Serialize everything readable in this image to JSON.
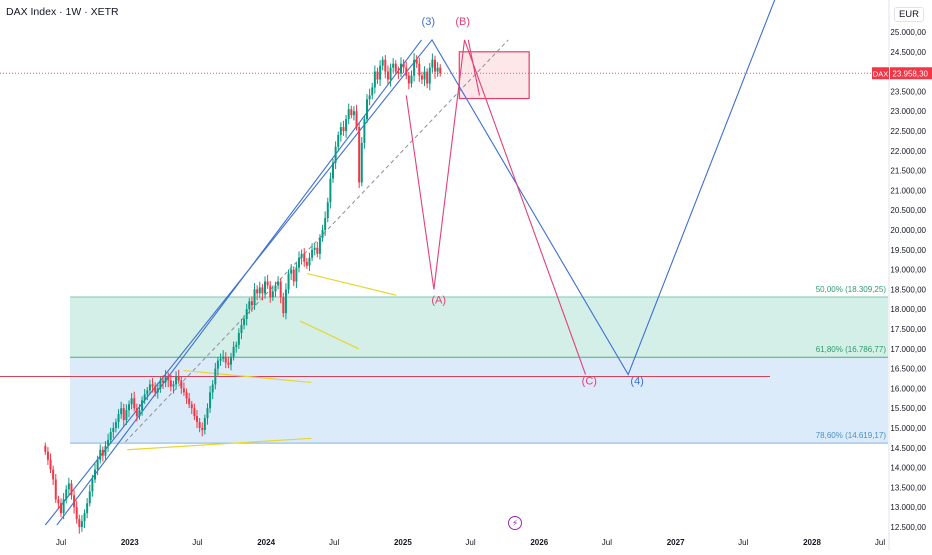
{
  "header": {
    "symbol_title": "DAX Index · 1W · XETR",
    "currency": "EUR"
  },
  "chart_data": {
    "type": "candlestick",
    "title": "DAX Index · 1W · XETR",
    "price_scale": {
      "unit": "EUR",
      "range": [
        12400,
        25500
      ],
      "ticks": [
        "25.000,00",
        "24.500,00",
        "24.000,00",
        "23.500,00",
        "23.000,00",
        "22.500,00",
        "22.000,00",
        "21.500,00",
        "21.000,00",
        "20.500,00",
        "20.000,00",
        "19.500,00",
        "19.000,00",
        "18.500,00",
        "18.000,00",
        "17.500,00",
        "17.000,00",
        "16.500,00",
        "16.000,00",
        "15.500,00",
        "15.000,00",
        "14.500,00",
        "14.000,00",
        "13.500,00",
        "13.000,00",
        "12.500,00"
      ],
      "tick_values": [
        25000,
        24500,
        24000,
        23500,
        23000,
        22500,
        22000,
        21500,
        21000,
        20500,
        20000,
        19500,
        19000,
        18500,
        18000,
        17500,
        17000,
        16500,
        16000,
        15500,
        15000,
        14500,
        14000,
        13500,
        13000,
        12500
      ]
    },
    "time_scale": {
      "range": [
        "2022-05-20",
        "2028-07-15"
      ],
      "ticks": [
        {
          "label": "Jul",
          "date": "2022-07-01"
        },
        {
          "label": "2023",
          "date": "2023-01-01"
        },
        {
          "label": "Jul",
          "date": "2023-07-01"
        },
        {
          "label": "2024",
          "date": "2024-01-01"
        },
        {
          "label": "Jul",
          "date": "2024-07-01"
        },
        {
          "label": "2025",
          "date": "2025-01-01"
        },
        {
          "label": "Jul",
          "date": "2025-07-01"
        },
        {
          "label": "2026",
          "date": "2026-01-01"
        },
        {
          "label": "Jul",
          "date": "2026-07-01"
        },
        {
          "label": "2027",
          "date": "2027-01-01"
        },
        {
          "label": "Jul",
          "date": "2027-07-01"
        },
        {
          "label": "2028",
          "date": "2028-01-01"
        },
        {
          "label": "Jul",
          "date": "2028-07-01"
        }
      ]
    },
    "last_price": {
      "symbol": "DAX",
      "value": 23958.3,
      "label": "23.958,30",
      "color": "#f23645"
    },
    "candle_colors": {
      "up": "#089981",
      "down": "#f23645"
    },
    "series": {
      "name": "DAX",
      "start_date": "2022-05-20",
      "interval_days": 7,
      "closes": [
        14400,
        14200,
        13950,
        13700,
        13200,
        13100,
        12850,
        13200,
        13450,
        13600,
        13300,
        13000,
        12700,
        12500,
        12650,
        12850,
        13100,
        13400,
        13700,
        13950,
        14200,
        14450,
        14300,
        14550,
        14700,
        14900,
        15000,
        15150,
        15350,
        15500,
        15200,
        15450,
        15600,
        15750,
        15500,
        15300,
        15450,
        15700,
        15850,
        15950,
        16100,
        16050,
        15900,
        16000,
        16200,
        16150,
        16300,
        16200,
        16050,
        16100,
        16300,
        16200,
        16000,
        15900,
        15750,
        15600,
        15500,
        15300,
        15150,
        15000,
        14950,
        15250,
        15500,
        15900,
        16100,
        16500,
        16700,
        16750,
        16800,
        16650,
        16600,
        16800,
        17050,
        17100,
        17400,
        17600,
        17750,
        18000,
        18200,
        18100,
        18500,
        18400,
        18550,
        18400,
        18700,
        18600,
        18300,
        18450,
        18600,
        18700,
        18300,
        17900,
        18500,
        18900,
        19000,
        18700,
        19050,
        19300,
        19400,
        19200,
        19100,
        19300,
        19500,
        19550,
        19400,
        19800,
        20000,
        20300,
        20700,
        21300,
        21700,
        22100,
        22400,
        22600,
        22500,
        22800,
        23050,
        22900,
        23000,
        22600,
        21200,
        22200,
        22800,
        23300,
        23400,
        23600,
        24000,
        23800,
        24150,
        24300,
        24000,
        23800,
        24100,
        24200,
        24000,
        23950,
        24200,
        24100,
        23900,
        23700,
        23900,
        24300,
        24200,
        23900,
        23800,
        24000,
        23700,
        24100,
        24300,
        24000,
        24100,
        23958
      ]
    },
    "zones": [
      {
        "label": "50,00% (18.309,25)",
        "from": 18309.25,
        "to": 16786.77,
        "fill": "#d4efe7",
        "line": "#7cc9b0",
        "label_color": "#2e9b6f"
      },
      {
        "label": "61,80% (16.786,77)",
        "from": 16786.77,
        "to": 14619.17,
        "fill": "#dcebfa",
        "line": "#4caf7d",
        "label_color": "#2e9b6f"
      },
      {
        "label": "78,60% (14.619,17)",
        "value": 14619.17,
        "line": "#82b5e0",
        "label_color": "#4a90c8"
      }
    ],
    "wave_labels": [
      {
        "text": "(3)",
        "date": "2025-03-10",
        "price": 25180,
        "color": "#3d6fd1"
      },
      {
        "text": "(B)",
        "date": "2025-06-10",
        "price": 25180,
        "color": "#e2407a"
      },
      {
        "text": "(A)",
        "date": "2025-04-07",
        "price": 18150,
        "color": "#e2407a"
      },
      {
        "text": "(C)",
        "date": "2026-05-15",
        "price": 16100,
        "color": "#e2407a"
      },
      {
        "text": "(4)",
        "date": "2026-09-20",
        "price": 16100,
        "color": "#3d6fd1"
      }
    ]
  }
}
